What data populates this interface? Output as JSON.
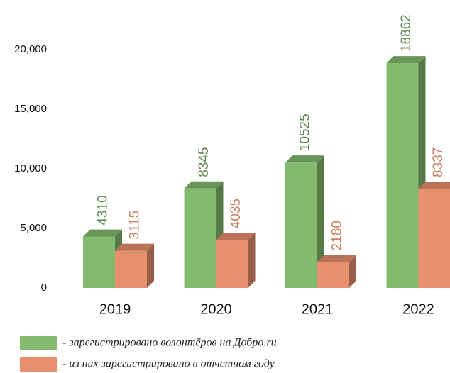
{
  "chart_data": {
    "type": "bar3d",
    "categories": [
      "2019",
      "2020",
      "2021",
      "2022"
    ],
    "series": [
      {
        "name": "- зарегистрировано волонтёров на Добро.ru",
        "color": "#82bb6e",
        "values": [
          4310,
          8345,
          10525,
          18862
        ]
      },
      {
        "name": "- из них зарегистрировано в отчетном году",
        "color": "#e8906e",
        "values": [
          3115,
          4035,
          2180,
          8337
        ]
      }
    ],
    "ylim": [
      0,
      20000
    ],
    "yticks": [
      0,
      {
        "value": 5000,
        "label": "5,000"
      },
      {
        "value": 10000,
        "label": "10,000"
      },
      {
        "value": 15000,
        "label": "15,000"
      },
      {
        "value": 20000,
        "label": "20,000"
      }
    ],
    "grid": false
  }
}
